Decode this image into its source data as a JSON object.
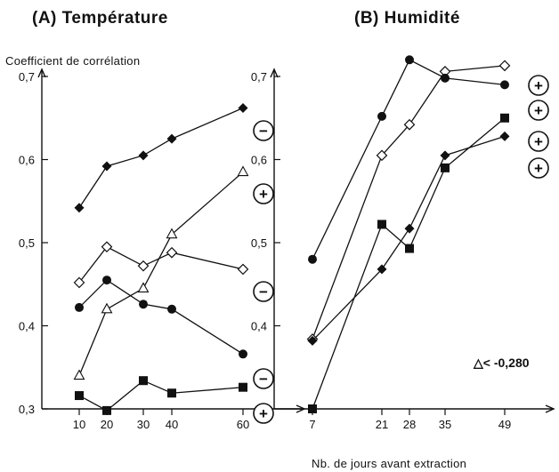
{
  "chart_data": [
    {
      "type": "line",
      "title": "(A) Température",
      "ylabel": "Coefficient de corrélation",
      "xlabel": "",
      "x": [
        10,
        20,
        30,
        40,
        60
      ],
      "xlim": [
        3,
        72
      ],
      "ylim": [
        0.3,
        0.73
      ],
      "yticks": [
        "0,3",
        "0,4",
        "0,5",
        "0,6",
        "0,7"
      ],
      "xticks": [
        "10",
        "20",
        "30",
        "40",
        "60"
      ],
      "grid": false,
      "series": [
        {
          "marker": "filled-diamond",
          "sign": "−",
          "values": [
            0.542,
            0.592,
            0.605,
            0.625,
            0.662
          ]
        },
        {
          "marker": "open-triangle",
          "sign": "+",
          "values": [
            0.34,
            0.42,
            0.445,
            0.51,
            0.585
          ]
        },
        {
          "marker": "open-diamond",
          "sign": "−",
          "values": [
            0.452,
            0.495,
            0.472,
            0.488,
            0.468
          ]
        },
        {
          "marker": "filled-circle",
          "sign": "−",
          "values": [
            0.422,
            0.455,
            0.426,
            0.42,
            0.366
          ]
        },
        {
          "marker": "filled-square",
          "sign": "+",
          "values": [
            0.316,
            0.298,
            0.334,
            0.319,
            0.326
          ]
        }
      ]
    },
    {
      "type": "line",
      "title": "(B) Humidité",
      "ylabel": "",
      "xlabel": "Nb. de jours avant extraction",
      "x": [
        7,
        21,
        28,
        35,
        49
      ],
      "xlim": [
        3,
        56
      ],
      "ylim": [
        0.3,
        0.73
      ],
      "yticks": [
        "0,4",
        "0,5",
        "0,6",
        "0,7"
      ],
      "xticks": [
        "7",
        "21",
        "28",
        "35",
        "49"
      ],
      "grid": false,
      "annotation": "△< -0,280",
      "series": [
        {
          "marker": "open-diamond",
          "sign": "+",
          "values": [
            0.384,
            0.605,
            0.642,
            0.706,
            0.713
          ]
        },
        {
          "marker": "filled-circle",
          "sign": "+",
          "values": [
            0.48,
            0.652,
            0.72,
            0.698,
            0.69
          ]
        },
        {
          "marker": "filled-square",
          "sign": "+",
          "values": [
            0.3,
            0.522,
            0.493,
            0.59,
            0.65
          ]
        },
        {
          "marker": "filled-diamond",
          "sign": "+",
          "values": [
            0.382,
            0.468,
            0.517,
            0.605,
            0.628
          ]
        }
      ]
    }
  ]
}
